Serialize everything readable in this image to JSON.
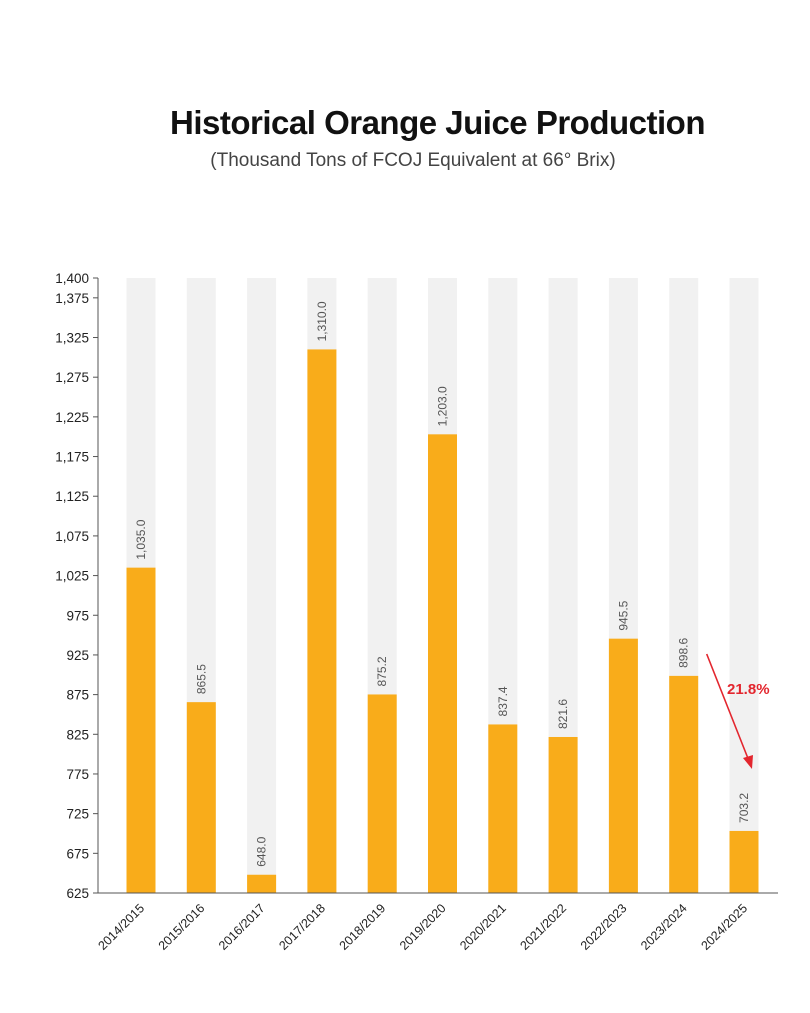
{
  "chart_data": {
    "type": "bar",
    "title": "Historical Orange Juice Production",
    "subtitle": "(Thousand Tons of FCOJ Equivalent at 66° Brix)",
    "categories": [
      "2014/2015",
      "2015/2016",
      "2016/2017",
      "2017/2018",
      "2018/2019",
      "2019/2020",
      "2020/2021",
      "2021/2022",
      "2022/2023",
      "2023/2024",
      "2024/2025"
    ],
    "values": [
      1035.0,
      865.5,
      648.0,
      1310.0,
      875.2,
      1203.0,
      837.4,
      821.6,
      945.5,
      898.6,
      703.2
    ],
    "value_labels": [
      "1,035.0",
      "865.5",
      "648.0",
      "1,310.0",
      "875.2",
      "1,203.0",
      "837.4",
      "821.6",
      "945.5",
      "898.6",
      "703.2"
    ],
    "ylim": [
      625,
      1400
    ],
    "yticks": [
      625,
      675,
      725,
      775,
      825,
      875,
      925,
      975,
      1025,
      1075,
      1125,
      1175,
      1225,
      1275,
      1325,
      1375,
      1400
    ],
    "ytick_labels": [
      "625",
      "675",
      "725",
      "775",
      "825",
      "875",
      "925",
      "975",
      "1,025",
      "1,075",
      "1,125",
      "1,175",
      "1,225",
      "1,275",
      "1,325",
      "1,375",
      "1,400"
    ],
    "xlabel": "",
    "ylabel": "",
    "grid": false,
    "colors": {
      "bar": "#f9ac1a",
      "background_bar": "#f1f1f1",
      "annotation": "#e3262e",
      "axis": "#555555"
    },
    "annotation": {
      "text": "21.8%",
      "from_category": "2023/2024",
      "to_category": "2024/2025"
    }
  }
}
